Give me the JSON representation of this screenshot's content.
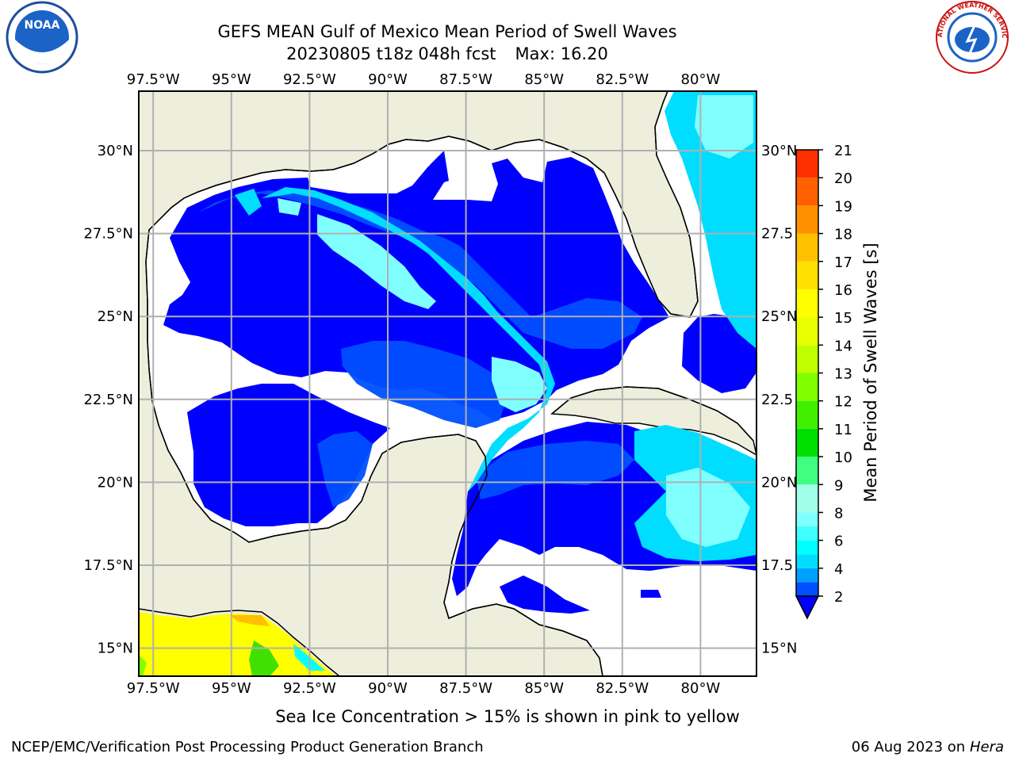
{
  "title": "GEFS MEAN Gulf of Mexico Mean Period of Swell Waves",
  "subtitle": "20230805 t18z 048h fcst",
  "max_label": "Max: 16.20",
  "ice_note": "Sea Ice Concentration > 15% is shown in pink to yellow",
  "footer_left": "NCEP/EMC/Verification Post Processing Product Generation Branch",
  "footer_date": "06 Aug 2023 on",
  "footer_host": "Hera",
  "logos": {
    "left": "NOAA",
    "right": "NATIONAL WEATHER SERVICE"
  },
  "chart_data": {
    "type": "heatmap",
    "title": "GEFS MEAN Gulf of Mexico Mean Period of Swell Waves",
    "subtitle": "20230805 t18z 048h fcst",
    "max_value": 16.2,
    "lon_ticks": [
      "97.5°W",
      "95°W",
      "92.5°W",
      "90°W",
      "87.5°W",
      "85°W",
      "82.5°W",
      "80°W"
    ],
    "lon_values": [
      -97.5,
      -95,
      -92.5,
      -90,
      -87.5,
      -85,
      -82.5,
      -80
    ],
    "lat_ticks_left": [
      "30°N",
      "27.5°N",
      "25°N",
      "22.5°N",
      "20°N",
      "17.5°N",
      "15°N"
    ],
    "lat_ticks_right": [
      "30°N",
      "27.5",
      "25°N",
      "22.5",
      "20°N",
      "17.5",
      "15°N"
    ],
    "lat_values": [
      30,
      27.5,
      25,
      22.5,
      20,
      17.5,
      15
    ],
    "colorbar": {
      "label": "Mean Period of Swell Waves [s]",
      "tick_labels": [
        "2",
        "4",
        "6",
        "8",
        "9",
        "10",
        "11",
        "12",
        "13",
        "14",
        "15",
        "16",
        "17",
        "18",
        "19",
        "20",
        "21"
      ],
      "levels": [
        2,
        3,
        4,
        5,
        6,
        7,
        8,
        9,
        10,
        11,
        12,
        13,
        14,
        15,
        16,
        17,
        18,
        19,
        20,
        21
      ],
      "colors": [
        "#0050ff",
        "#00a0ff",
        "#00ddff",
        "#00ffff",
        "#40ffff",
        "#80ffff",
        "#a0ffe8",
        "#40ff80",
        "#00e000",
        "#40f000",
        "#80ff00",
        "#c0ff00",
        "#e8ff00",
        "#ffff00",
        "#ffe000",
        "#ffc000",
        "#ff9000",
        "#ff6000",
        "#ff3000",
        "#ff0000"
      ],
      "extend": "min",
      "extend_color": "#0000ff"
    },
    "colors": {
      "land": "#eeeedd",
      "no_data": "#ffffff",
      "grid": "#b0b0b0",
      "coast": "#000000"
    }
  }
}
